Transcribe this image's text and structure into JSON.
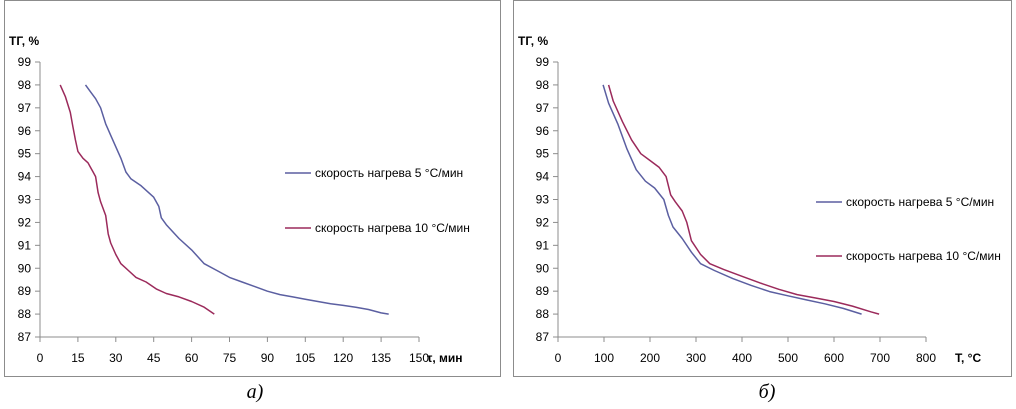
{
  "chart_data": [
    {
      "type": "line",
      "ylabel": "ТГ, %",
      "xlabel": "τ, мин",
      "ylim": [
        87,
        99
      ],
      "xlim": [
        0,
        150
      ],
      "yticks": [
        87,
        88,
        89,
        90,
        91,
        92,
        93,
        94,
        95,
        96,
        97,
        98,
        99
      ],
      "xticks": [
        0,
        15,
        30,
        45,
        60,
        75,
        90,
        105,
        120,
        135,
        150
      ],
      "grid": false,
      "legend_position": "right",
      "series": [
        {
          "name": "скорость нагрева 5 °С/мин",
          "color": "#5b5fa1",
          "x": [
            18,
            20,
            22,
            24,
            26,
            28,
            30,
            32,
            34,
            36,
            40,
            45,
            47,
            48,
            50,
            55,
            60,
            65,
            70,
            75,
            80,
            85,
            90,
            95,
            100,
            105,
            110,
            115,
            120,
            125,
            130,
            135,
            138
          ],
          "y": [
            98,
            97.7,
            97.4,
            97,
            96.3,
            95.8,
            95.3,
            94.8,
            94.2,
            93.9,
            93.6,
            93.1,
            92.7,
            92.2,
            91.9,
            91.3,
            90.8,
            90.2,
            89.9,
            89.6,
            89.4,
            89.2,
            89.0,
            88.85,
            88.75,
            88.65,
            88.55,
            88.45,
            88.38,
            88.3,
            88.2,
            88.05,
            88.0
          ]
        },
        {
          "name": "скорость нагрева 10 °С/мин",
          "color": "#9b2a5b",
          "x": [
            8,
            10,
            12,
            13,
            14,
            15,
            17,
            19,
            20,
            21,
            22,
            23,
            24,
            26,
            27,
            28,
            30,
            32,
            35,
            38,
            42,
            46,
            50,
            55,
            60,
            65,
            69
          ],
          "y": [
            98,
            97.5,
            96.8,
            96.2,
            95.6,
            95.1,
            94.8,
            94.6,
            94.4,
            94.2,
            94.0,
            93.3,
            92.9,
            92.3,
            91.5,
            91.1,
            90.6,
            90.2,
            89.9,
            89.6,
            89.4,
            89.1,
            88.9,
            88.75,
            88.55,
            88.3,
            88.0
          ]
        }
      ]
    },
    {
      "type": "line",
      "ylabel": "ТГ, %",
      "xlabel": "T, °C",
      "ylim": [
        87,
        99
      ],
      "xlim": [
        0,
        800
      ],
      "yticks": [
        87,
        88,
        89,
        90,
        91,
        92,
        93,
        94,
        95,
        96,
        97,
        98,
        99
      ],
      "xticks": [
        0,
        100,
        200,
        300,
        400,
        500,
        600,
        700,
        800
      ],
      "grid": false,
      "legend_position": "right",
      "series": [
        {
          "name": "скорость нагрева 5 °С/мин",
          "color": "#5b5fa1",
          "x": [
            98,
            110,
            130,
            150,
            170,
            190,
            210,
            230,
            240,
            250,
            270,
            290,
            310,
            340,
            380,
            420,
            460,
            500,
            540,
            580,
            620,
            660
          ],
          "y": [
            98,
            97.2,
            96.3,
            95.2,
            94.3,
            93.8,
            93.5,
            93.0,
            92.3,
            91.8,
            91.3,
            90.7,
            90.2,
            89.9,
            89.55,
            89.25,
            88.98,
            88.8,
            88.62,
            88.45,
            88.25,
            88.0
          ]
        },
        {
          "name": "скорость нагрева 10 °С/мин",
          "color": "#9b2a5b",
          "x": [
            110,
            120,
            140,
            160,
            180,
            200,
            220,
            235,
            245,
            255,
            270,
            280,
            290,
            310,
            330,
            360,
            400,
            440,
            480,
            520,
            560,
            600,
            640,
            680,
            698
          ],
          "y": [
            98,
            97.3,
            96.4,
            95.6,
            95.0,
            94.7,
            94.4,
            94.0,
            93.2,
            92.9,
            92.5,
            92.0,
            91.2,
            90.6,
            90.2,
            89.95,
            89.65,
            89.35,
            89.08,
            88.85,
            88.7,
            88.55,
            88.35,
            88.1,
            88.0
          ]
        }
      ]
    }
  ],
  "captions": [
    "а)",
    "б)"
  ]
}
